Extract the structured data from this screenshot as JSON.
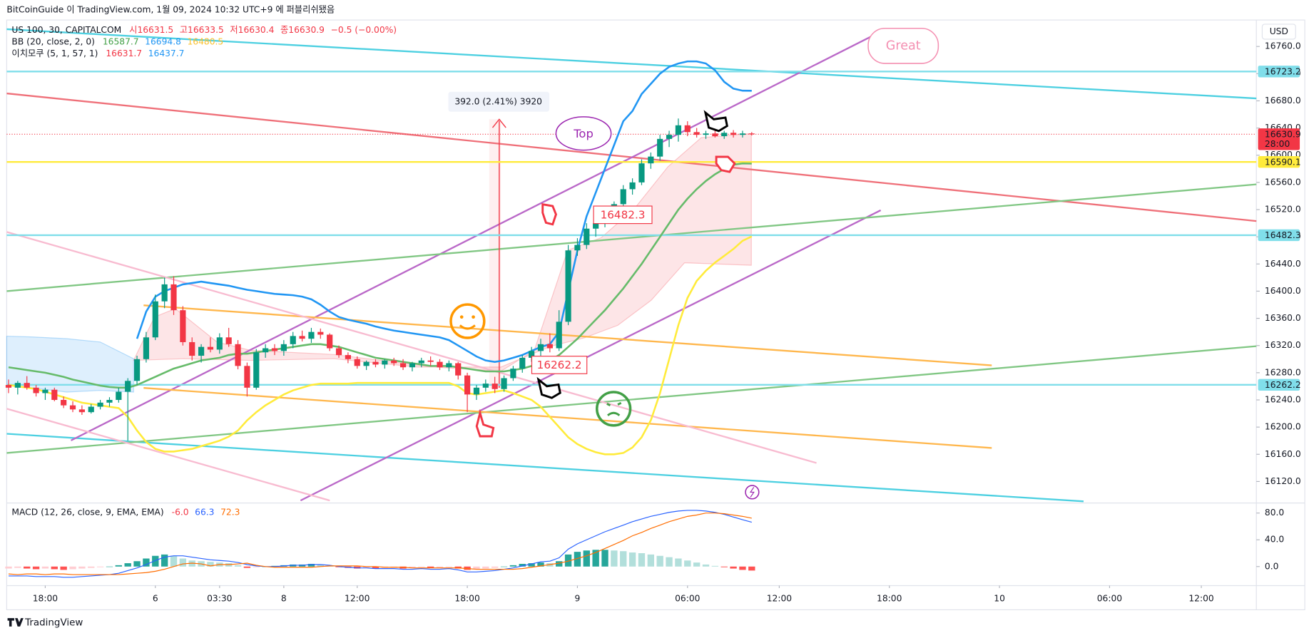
{
  "header": {
    "title": "BitCoinGuide 이 TradingView.com, 1월 09, 2024 10:32 UTC+9 에 퍼블리쉬됐음",
    "currency": "USD",
    "footer": "TradingView"
  },
  "legend": {
    "symbol": "US 100, 30, CAPITALCOM",
    "ohlc": [
      "시16631.5",
      "고16633.5",
      "저16630.4",
      "종16630.9"
    ],
    "change": "−0.5 (−0.00%)",
    "bb_label": "BB (20, close, 2, 0)",
    "bb_values": [
      "16587.7",
      "16694.8",
      "16480.5"
    ],
    "ichimoku_label": "이치모쿠 (5, 1, 57, 1)",
    "ichimoku_values": [
      "16631.7",
      "16437.7"
    ],
    "macd_label": "MACD (12, 26, close, 9, EMA, EMA)",
    "macd_values": [
      "-6.0",
      "66.3",
      "72.3"
    ]
  },
  "annotations": {
    "measure": "392.0 (2.41%) 3920",
    "top": "Top",
    "great": "Great",
    "label_high": "16482.3",
    "label_low": "16262.2"
  },
  "chart_data": [
    {
      "type": "candlestick",
      "xlim": [
        -0.2,
        136
      ],
      "ylim": [
        16092,
        16794
      ],
      "xticks": [
        {
          "value": 4,
          "label": "18:00"
        },
        {
          "value": 16,
          "label": "6"
        },
        {
          "value": 23,
          "label": "03:30"
        },
        {
          "value": 30,
          "label": "8"
        },
        {
          "value": 38,
          "label": "12:00"
        },
        {
          "value": 50,
          "label": "18:00"
        },
        {
          "value": 62,
          "label": "9"
        },
        {
          "value": 74,
          "label": "06:00"
        },
        {
          "value": 84,
          "label": "12:00"
        },
        {
          "value": 96,
          "label": "18:00"
        },
        {
          "value": 108,
          "label": "10"
        },
        {
          "value": 120,
          "label": "06:00"
        },
        {
          "value": 130,
          "label": "12:00"
        }
      ],
      "yticks": [
        {
          "value": 16120,
          "label": "16120.0"
        },
        {
          "value": 16160,
          "label": "16160.0"
        },
        {
          "value": 16200,
          "label": "16200.0"
        },
        {
          "value": 16240,
          "label": "16240.0"
        },
        {
          "value": 16280,
          "label": "16280.0"
        },
        {
          "value": 16320,
          "label": "16320.0"
        },
        {
          "value": 16360,
          "label": "16360.0"
        },
        {
          "value": 16400,
          "label": "16400.0"
        },
        {
          "value": 16440,
          "label": "16440.0"
        },
        {
          "value": 16480,
          "label": "16480.0"
        },
        {
          "value": 16520,
          "label": "16520.0"
        },
        {
          "value": 16560,
          "label": "16560.0"
        },
        {
          "value": 16600,
          "label": "16600.0"
        },
        {
          "value": 16640,
          "label": "16640.0"
        },
        {
          "value": 16680,
          "label": "16680.0"
        },
        {
          "value": 16720,
          "label": "16720.0"
        },
        {
          "value": 16760,
          "label": "16760.0"
        }
      ],
      "open": [
        16262,
        16258,
        16265,
        16258,
        16250,
        16255,
        16240,
        16232,
        16226,
        16222,
        16230,
        16236,
        16240,
        16252,
        16268,
        16300,
        16332,
        16385,
        16410,
        16372,
        16325,
        16305,
        16318,
        16314,
        16332,
        16322,
        16290,
        16258,
        16310,
        16316,
        16312,
        16322,
        16334,
        16330,
        16340,
        16336,
        16316,
        16306,
        16300,
        16290,
        16296,
        16292,
        16298,
        16294,
        16288,
        16294,
        16298,
        16296,
        16288,
        16294,
        16276,
        16248,
        16258,
        16264,
        16256,
        16272,
        16286,
        16302,
        16312,
        16322,
        16316,
        16355,
        16460,
        16468,
        16492,
        16500,
        16514,
        16528,
        16550,
        16560,
        16588,
        16598,
        16624,
        16630,
        16644,
        16634,
        16630,
        16632,
        16628,
        16633,
        16630,
        16632
      ],
      "high": [
        16270,
        16268,
        16275,
        16262,
        16258,
        16258,
        16245,
        16238,
        16232,
        16234,
        16240,
        16244,
        16258,
        16272,
        16305,
        16340,
        16395,
        16420,
        16422,
        16378,
        16332,
        16322,
        16332,
        16338,
        16346,
        16328,
        16295,
        16315,
        16322,
        16322,
        16328,
        16340,
        16342,
        16346,
        16345,
        16338,
        16320,
        16310,
        16304,
        16298,
        16300,
        16300,
        16302,
        16300,
        16296,
        16302,
        16304,
        16300,
        16298,
        16296,
        16280,
        16262,
        16270,
        16274,
        16276,
        16290,
        16306,
        16318,
        16330,
        16338,
        16372,
        16468,
        16478,
        16500,
        16506,
        16520,
        16532,
        16556,
        16566,
        16594,
        16604,
        16630,
        16636,
        16654,
        16650,
        16640,
        16636,
        16638,
        16636,
        16637,
        16636,
        16634
      ],
      "low": [
        16250,
        16248,
        16255,
        16245,
        16240,
        16238,
        16228,
        16222,
        16218,
        16220,
        16226,
        16230,
        16236,
        16180,
        16262,
        16295,
        16328,
        16375,
        16365,
        16320,
        16298,
        16295,
        16310,
        16308,
        16318,
        16285,
        16245,
        16255,
        16302,
        16306,
        16305,
        16316,
        16326,
        16324,
        16330,
        16312,
        16302,
        16294,
        16286,
        16284,
        16288,
        16286,
        16290,
        16284,
        16282,
        16288,
        16290,
        16284,
        16282,
        16270,
        16222,
        16240,
        16252,
        16250,
        16252,
        16268,
        16280,
        16296,
        16305,
        16310,
        16312,
        16350,
        16452,
        16462,
        16480,
        16494,
        16505,
        16522,
        16542,
        16556,
        16580,
        16592,
        16612,
        16620,
        16628,
        16626,
        16624,
        16626,
        16624,
        16626,
        16626,
        16629
      ],
      "close": [
        16258,
        16265,
        16258,
        16250,
        16255,
        16240,
        16232,
        16226,
        16222,
        16230,
        16236,
        16240,
        16252,
        16268,
        16300,
        16332,
        16385,
        16410,
        16372,
        16325,
        16305,
        16318,
        16314,
        16332,
        16322,
        16290,
        16258,
        16310,
        16316,
        16312,
        16322,
        16334,
        16330,
        16340,
        16336,
        16316,
        16306,
        16300,
        16290,
        16296,
        16292,
        16298,
        16294,
        16288,
        16294,
        16298,
        16296,
        16288,
        16294,
        16276,
        16248,
        16258,
        16264,
        16256,
        16272,
        16286,
        16302,
        16312,
        16322,
        16316,
        16355,
        16460,
        16468,
        16492,
        16500,
        16514,
        16528,
        16550,
        16560,
        16588,
        16598,
        16624,
        16630,
        16644,
        16634,
        16630,
        16632,
        16628,
        16633,
        16630,
        16632,
        16630.9
      ],
      "up_color": "#089981",
      "down_color": "#f23645",
      "series": [
        {
          "color": "#2196f3",
          "values": [
            null,
            null,
            null,
            null,
            null,
            null,
            null,
            null,
            null,
            null,
            null,
            null,
            null,
            null,
            16330,
            16370,
            16392,
            16400,
            16405,
            16410,
            16412,
            16414,
            16412,
            16410,
            16408,
            16405,
            16402,
            16400,
            16398,
            16396,
            16395,
            16394,
            16392,
            16388,
            16380,
            16370,
            16362,
            16358,
            16355,
            16352,
            16348,
            16345,
            16342,
            16340,
            16338,
            16336,
            16334,
            16332,
            16328,
            16320,
            16312,
            16304,
            16298,
            16296,
            16298,
            16302,
            16306,
            16312,
            16318,
            16322,
            16340,
            16400,
            16460,
            16510,
            16545,
            16580,
            16615,
            16650,
            16665,
            16690,
            16705,
            16720,
            16730,
            16735,
            16738,
            16738,
            16735,
            16725,
            16708,
            16698,
            16695,
            16694.8
          ]
        },
        {
          "color": "#66bb6a",
          "values": [
            16288,
            16286,
            16284,
            16282,
            16280,
            16277,
            16274,
            16270,
            16267,
            16264,
            16261,
            16259,
            16258,
            16258,
            16262,
            16268,
            16274,
            16280,
            16286,
            16290,
            16294,
            16298,
            16300,
            16302,
            16306,
            16308,
            16308,
            16310,
            16312,
            16314,
            16316,
            16318,
            16320,
            16322,
            16322,
            16320,
            16318,
            16314,
            16310,
            16306,
            16302,
            16300,
            16298,
            16296,
            16294,
            16292,
            16290,
            16290,
            16290,
            16288,
            16286,
            16284,
            16282,
            16282,
            16282,
            16284,
            16286,
            16290,
            16294,
            16298,
            16306,
            16318,
            16330,
            16344,
            16358,
            16372,
            16388,
            16404,
            16422,
            16440,
            16460,
            16480,
            16500,
            16520,
            16536,
            16550,
            16562,
            16572,
            16580,
            16586,
            16588,
            16587.7
          ]
        },
        {
          "color": "#ffeb3b",
          "values": [
            16262,
            16260,
            16258,
            16256,
            16252,
            16248,
            16244,
            16240,
            16236,
            16234,
            16232,
            16230,
            16228,
            16215,
            16195,
            16178,
            16168,
            16164,
            16164,
            16166,
            16168,
            16172,
            16176,
            16180,
            16186,
            16195,
            16210,
            16222,
            16232,
            16240,
            16248,
            16254,
            16258,
            16262,
            16264,
            16264,
            16264,
            16264,
            16265,
            16265,
            16265,
            16265,
            16265,
            16265,
            16265,
            16265,
            16265,
            16265,
            16265,
            16260,
            16250,
            16248,
            16250,
            16252,
            16254,
            16250,
            16245,
            16240,
            16230,
            16215,
            16200,
            16185,
            16175,
            16168,
            16163,
            16160,
            16160,
            16162,
            16170,
            16185,
            16210,
            16250,
            16300,
            16350,
            16390,
            16415,
            16430,
            16442,
            16452,
            16462,
            16474,
            16480.5
          ]
        }
      ],
      "price_lines": [
        {
          "value": 16723.2,
          "color": "#80deea"
        },
        {
          "value": 16590.1,
          "color": "#ffeb3b"
        },
        {
          "value": 16482.3,
          "color": "#80deea"
        },
        {
          "value": 16262.2,
          "color": "#80deea"
        }
      ],
      "last_price": {
        "value": 16630.9,
        "countdown": "28:00",
        "color": "#f23645"
      }
    },
    {
      "type": "macd",
      "ylim": [
        -26,
        95
      ],
      "yticks": [
        {
          "value": 0,
          "label": "0.0"
        },
        {
          "value": 40,
          "label": "40.0"
        },
        {
          "value": 80,
          "label": "80.0"
        }
      ],
      "histogram": [
        -3,
        -2,
        -3,
        -4,
        -3,
        -4,
        -5,
        -4,
        -3,
        -2,
        -1,
        0,
        2,
        5,
        8,
        12,
        16,
        18,
        16,
        12,
        9,
        8,
        7,
        6,
        5,
        2,
        -2,
        -1,
        0,
        1,
        2,
        3,
        3,
        4,
        3,
        1,
        -1,
        -2,
        -3,
        -2,
        -3,
        -2,
        -2,
        -3,
        -2,
        -1,
        -2,
        -2,
        -1,
        -3,
        -5,
        -4,
        -3,
        -2,
        0,
        2,
        4,
        5,
        6,
        5,
        8,
        18,
        22,
        24,
        25,
        25,
        24,
        23,
        21,
        20,
        18,
        16,
        14,
        12,
        9,
        6,
        3,
        1,
        -1,
        -3,
        -5,
        -6.0
      ],
      "histogram_colors": [
        "#26a69a",
        "#b2dfdb",
        "#ffcdd2",
        "#ff5252"
      ],
      "series": [
        {
          "color": "#2962ff",
          "values": [
            -14,
            -14,
            -14,
            -15,
            -15,
            -15,
            -16,
            -16,
            -15,
            -14,
            -13,
            -12,
            -10,
            -6,
            -2,
            3,
            9,
            14,
            16,
            16,
            14,
            12,
            10,
            9,
            8,
            6,
            3,
            1,
            0,
            0,
            1,
            2,
            2,
            3,
            3,
            2,
            0,
            -1,
            -2,
            -2,
            -3,
            -3,
            -3,
            -4,
            -4,
            -3,
            -4,
            -4,
            -3,
            -5,
            -8,
            -8,
            -7,
            -6,
            -4,
            -2,
            1,
            4,
            7,
            8,
            13,
            26,
            34,
            40,
            46,
            52,
            57,
            62,
            67,
            71,
            75,
            78,
            81,
            83,
            84,
            84,
            83,
            81,
            78,
            74,
            70,
            66.3
          ]
        },
        {
          "color": "#ff6d00",
          "values": [
            -11,
            -12,
            -11,
            -11,
            -12,
            -11,
            -11,
            -12,
            -12,
            -12,
            -12,
            -12,
            -12,
            -11,
            -10,
            -9,
            -7,
            -4,
            0,
            4,
            5,
            4,
            1,
            3,
            3,
            4,
            5,
            2,
            0,
            -1,
            -1,
            -1,
            -1,
            -1,
            0,
            1,
            1,
            1,
            1,
            0,
            0,
            -1,
            -1,
            -1,
            -2,
            -2,
            -2,
            -2,
            -2,
            -2,
            -3,
            -4,
            -4,
            -4,
            -4,
            -4,
            -3,
            -1,
            1,
            3,
            5,
            8,
            12,
            16,
            21,
            27,
            33,
            39,
            46,
            51,
            57,
            62,
            67,
            71,
            75,
            77,
            80,
            80,
            79,
            77,
            75,
            72.3
          ]
        }
      ]
    }
  ]
}
